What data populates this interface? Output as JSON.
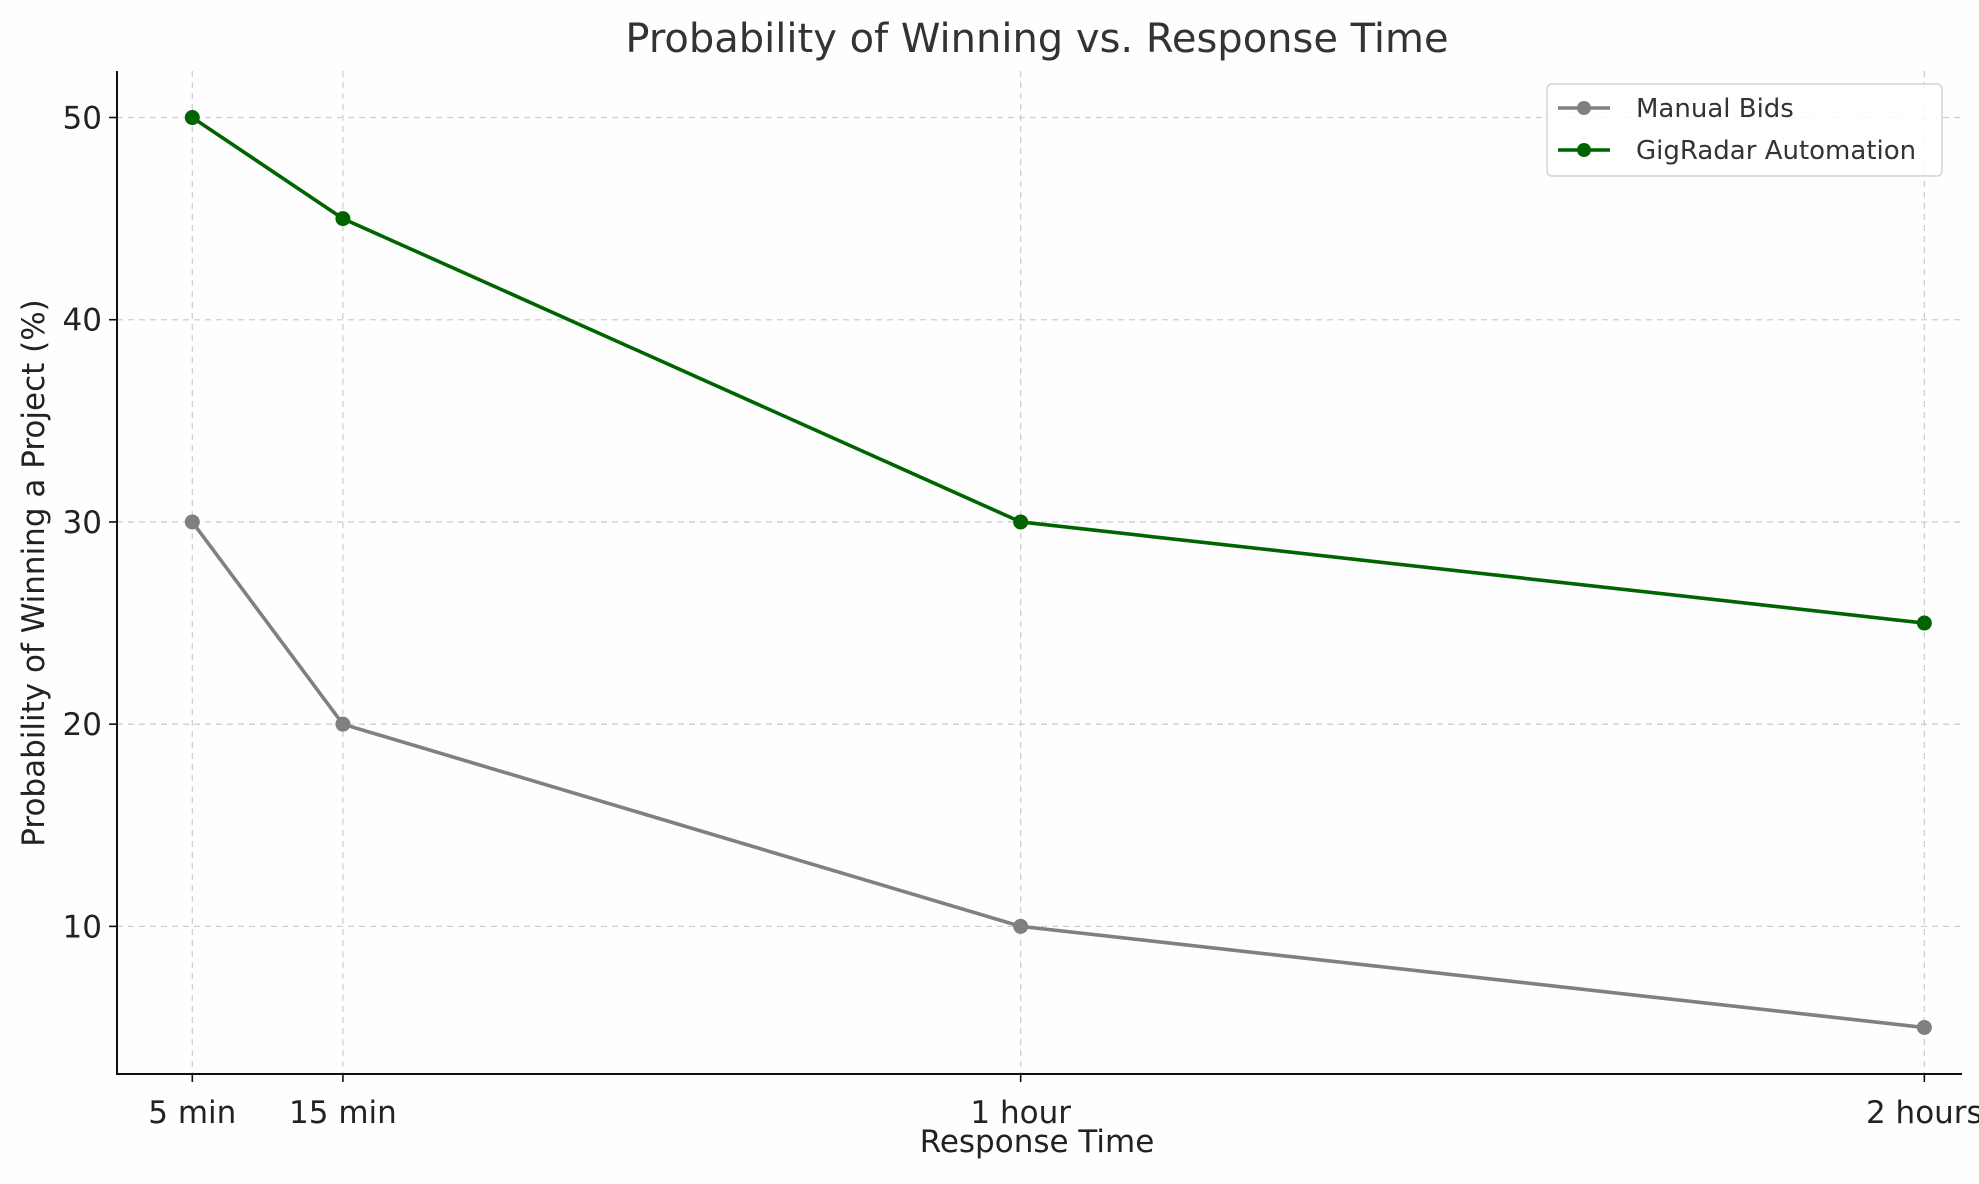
{
  "chart_data": {
    "type": "line",
    "title": "Probability of Winning vs. Response Time",
    "xlabel": "Response Time",
    "ylabel": "Probability of Winning a Project (%)",
    "categories": [
      "5 min",
      "15 min",
      "1 hour",
      "2 hours"
    ],
    "x_minutes": [
      5,
      15,
      60,
      120
    ],
    "ylim": [
      2.7,
      52.3
    ],
    "yticks": [
      10,
      20,
      30,
      40,
      50
    ],
    "grid": true,
    "legend_position": "top-right",
    "series": [
      {
        "name": "Manual Bids",
        "color": "#808080",
        "values": [
          30,
          20,
          10,
          5
        ]
      },
      {
        "name": "GigRadar Automation",
        "color": "#006400",
        "values": [
          50,
          45,
          30,
          25
        ]
      }
    ]
  }
}
